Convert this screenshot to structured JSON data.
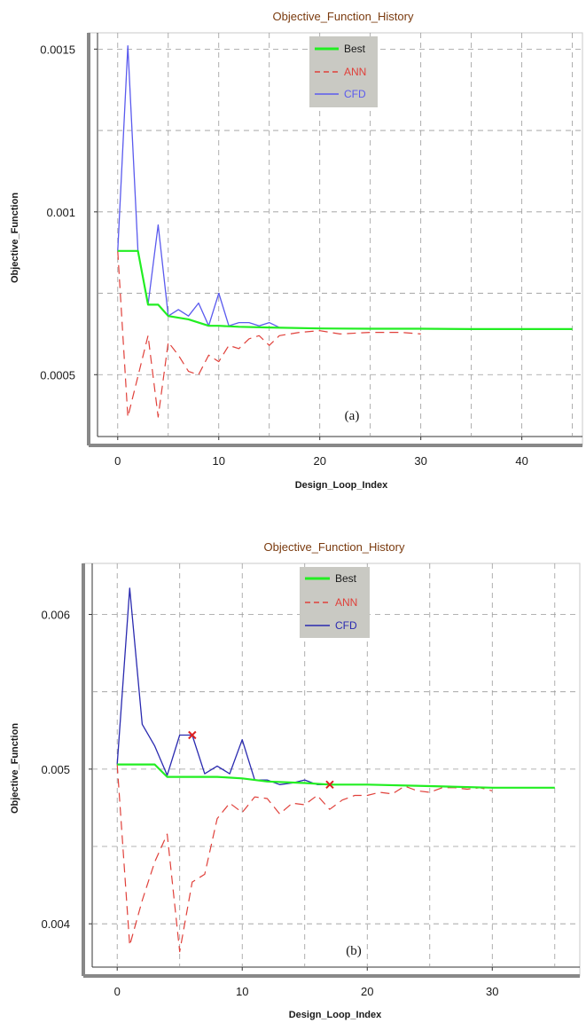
{
  "chart_data": [
    {
      "type": "line",
      "title": "Objective_Function_History",
      "xlabel": "Design_Loop_Index",
      "ylabel": "Objective_Function",
      "panel_label": "(a)",
      "xlim": [
        -2,
        46
      ],
      "ylim": [
        0.00031,
        0.00155
      ],
      "xticks": [
        0,
        10,
        20,
        30,
        40
      ],
      "xtick_labels": [
        "0",
        "10",
        "20",
        "30",
        "40"
      ],
      "yticks": [
        0.0005,
        0.001,
        0.0015
      ],
      "ytick_labels": [
        "0.0005",
        "0.001",
        "0.0015"
      ],
      "grid": true,
      "legend": {
        "position": "top-center",
        "background": "#c9c9c3"
      },
      "series": [
        {
          "name": "Best",
          "color": "#22ee22",
          "dash": "",
          "width": 2.2,
          "x": [
            0,
            2,
            3,
            4,
            5,
            6,
            7,
            8,
            9,
            10,
            12,
            15,
            20,
            25,
            30,
            35,
            40,
            45
          ],
          "y": [
            0.00088,
            0.00088,
            0.000715,
            0.000715,
            0.00068,
            0.000675,
            0.00067,
            0.00066,
            0.00065,
            0.00065,
            0.000647,
            0.000645,
            0.000642,
            0.000641,
            0.000641,
            0.00064,
            0.00064,
            0.00064
          ]
        },
        {
          "name": "ANN",
          "color": "#e0403a",
          "dash": "10 6",
          "width": 1.2,
          "x": [
            0,
            1,
            3,
            4,
            5,
            6,
            7,
            8,
            9,
            10,
            11,
            12,
            13,
            14,
            15,
            16,
            18,
            20,
            22,
            25,
            28,
            30
          ],
          "y": [
            0.00088,
            0.00037,
            0.00062,
            0.00037,
            0.0006,
            0.00056,
            0.00051,
            0.0005,
            0.00056,
            0.00054,
            0.00059,
            0.00058,
            0.00061,
            0.00062,
            0.00059,
            0.00062,
            0.00063,
            0.000635,
            0.000625,
            0.00063,
            0.00063,
            0.000625
          ]
        },
        {
          "name": "CFD",
          "color": "#5a5aee",
          "dash": "",
          "width": 1.3,
          "x": [
            0,
            1,
            2,
            3,
            4,
            5,
            6,
            7,
            8,
            9,
            10,
            11,
            12,
            13,
            14,
            15,
            16
          ],
          "y": [
            0.00088,
            0.00151,
            0.00088,
            0.000715,
            0.00096,
            0.00068,
            0.0007,
            0.00068,
            0.00072,
            0.00065,
            0.00075,
            0.00065,
            0.00066,
            0.00066,
            0.00065,
            0.00066,
            0.000645
          ]
        }
      ],
      "markers": []
    },
    {
      "type": "line",
      "title": "Objective_Function_History",
      "xlabel": "Design_Loop_Index",
      "ylabel": "Objective_Function",
      "panel_label": "(b)",
      "xlim": [
        -2,
        37
      ],
      "ylim": [
        0.00372,
        0.00633
      ],
      "xticks": [
        0,
        10,
        20,
        30
      ],
      "xtick_labels": [
        "0",
        "10",
        "20",
        "30"
      ],
      "yticks": [
        0.004,
        0.005,
        0.006
      ],
      "ytick_labels": [
        "0.004",
        "0.005",
        "0.006"
      ],
      "grid": true,
      "legend": {
        "position": "top-center",
        "background": "#c9c9c3"
      },
      "series": [
        {
          "name": "Best",
          "color": "#22ee22",
          "dash": "",
          "width": 2.2,
          "x": [
            0,
            3,
            4,
            8,
            10,
            12,
            15,
            17,
            20,
            25,
            30,
            35
          ],
          "y": [
            0.00503,
            0.00503,
            0.00495,
            0.00495,
            0.00494,
            0.00492,
            0.00491,
            0.0049,
            0.0049,
            0.00489,
            0.00488,
            0.00488
          ]
        },
        {
          "name": "ANN",
          "color": "#e0403a",
          "dash": "10 6",
          "width": 1.2,
          "x": [
            0,
            1,
            2,
            3,
            4,
            5,
            6,
            7,
            8,
            9,
            10,
            11,
            12,
            13,
            14,
            15,
            16,
            17,
            18,
            19,
            20,
            21,
            22,
            23,
            24,
            25,
            26,
            27,
            28,
            29,
            30
          ],
          "y": [
            0.00503,
            0.00386,
            0.00415,
            0.0044,
            0.00458,
            0.00382,
            0.00427,
            0.00432,
            0.00468,
            0.00478,
            0.00472,
            0.00482,
            0.00481,
            0.00471,
            0.00478,
            0.00477,
            0.00483,
            0.00474,
            0.0048,
            0.00483,
            0.00483,
            0.00485,
            0.00484,
            0.00489,
            0.00486,
            0.00485,
            0.00488,
            0.00488,
            0.00487,
            0.00488,
            0.00486
          ]
        },
        {
          "name": "CFD",
          "color": "#2a2ab0",
          "dash": "",
          "width": 1.3,
          "x": [
            0,
            1,
            2,
            3,
            4,
            5,
            6,
            7,
            8,
            9,
            10,
            11,
            12,
            13,
            14,
            15,
            16,
            17
          ],
          "y": [
            0.00503,
            0.00617,
            0.00529,
            0.00515,
            0.00496,
            0.00522,
            0.00522,
            0.00497,
            0.00502,
            0.00497,
            0.00519,
            0.00493,
            0.00493,
            0.0049,
            0.00491,
            0.00493,
            0.0049,
            0.0049
          ]
        }
      ],
      "markers": [
        {
          "x": 6,
          "y": 0.00522,
          "symbol": "x",
          "color": "#dd2222"
        },
        {
          "x": 17,
          "y": 0.0049,
          "symbol": "x",
          "color": "#dd2222"
        }
      ]
    }
  ]
}
